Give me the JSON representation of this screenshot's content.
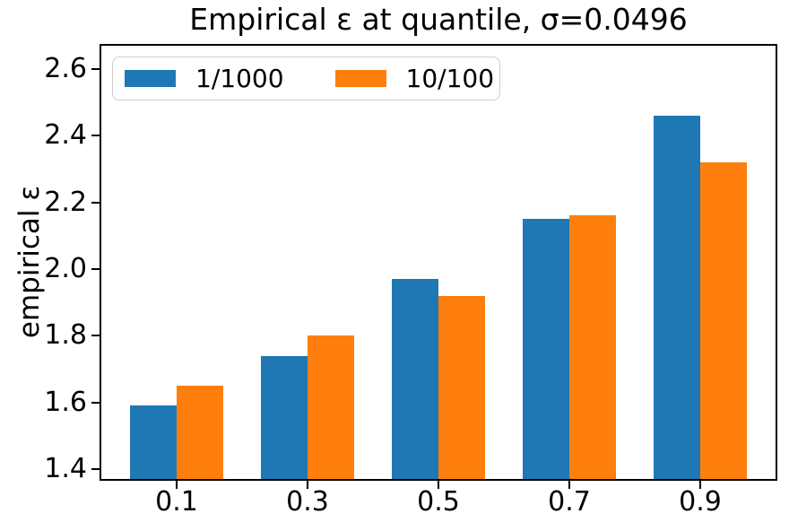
{
  "figure": {
    "background": "#ffffff",
    "axis_color": "#000000",
    "text_color": "#000000"
  },
  "chart_data": {
    "type": "bar",
    "title": "Empirical ε at quantile, σ=0.0496",
    "xlabel": "",
    "ylabel": "empirical ε",
    "categories": [
      "0.1",
      "0.3",
      "0.5",
      "0.7",
      "0.9"
    ],
    "series": [
      {
        "name": "1/1000",
        "color": "#1f77b4",
        "values": [
          1.59,
          1.74,
          1.97,
          2.15,
          2.46
        ]
      },
      {
        "name": "10/100",
        "color": "#ff7f0e",
        "values": [
          1.65,
          1.8,
          1.92,
          2.16,
          2.32
        ]
      }
    ],
    "ylim": [
      1.37,
      2.67
    ],
    "ytick_values": [
      1.4,
      1.6,
      1.8,
      2.0,
      2.2,
      2.4,
      2.6
    ],
    "ytick_labels": [
      "1.4",
      "1.6",
      "1.8",
      "2.0",
      "2.2",
      "2.4",
      "2.6"
    ],
    "grid": false,
    "legend_position": "upper-left"
  }
}
